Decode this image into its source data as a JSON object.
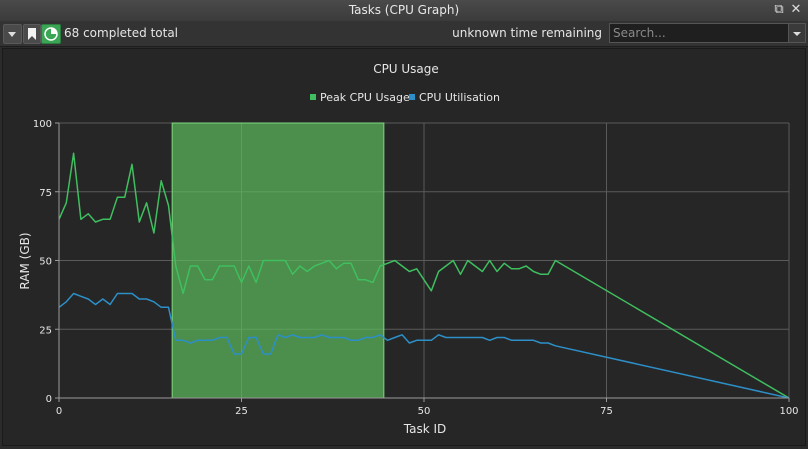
{
  "window": {
    "title": "Tasks (CPU Graph)"
  },
  "toolbar": {
    "completed_text": "68 completed total",
    "remaining_text": "unknown time remaining",
    "search_placeholder": "Search..."
  },
  "colors": {
    "peak": "#3fbf5f",
    "util": "#2d8fc8",
    "selection": "#5fbf5f"
  },
  "chart_data": {
    "type": "line",
    "title": "CPU Usage",
    "xlabel": "Task ID",
    "ylabel": "RAM (GB)",
    "xlim": [
      0,
      100
    ],
    "ylim": [
      0,
      100
    ],
    "x_ticks": [
      "0",
      "25",
      "50",
      "75",
      "100"
    ],
    "y_ticks": [
      "0",
      "25",
      "50",
      "75",
      "100"
    ],
    "grid": true,
    "legend_position": "top-center",
    "highlight_range": [
      15.5,
      44.5
    ],
    "series": [
      {
        "name": "Peak CPU Usage",
        "color": "#3fbf5f",
        "x": [
          0,
          1,
          2,
          3,
          4,
          5,
          6,
          7,
          8,
          9,
          10,
          11,
          12,
          13,
          14,
          15,
          16,
          17,
          18,
          19,
          20,
          21,
          22,
          23,
          24,
          25,
          26,
          27,
          28,
          29,
          30,
          31,
          32,
          33,
          34,
          35,
          36,
          37,
          38,
          39,
          40,
          41,
          42,
          43,
          44,
          45,
          46,
          47,
          48,
          49,
          50,
          51,
          52,
          53,
          54,
          55,
          56,
          57,
          58,
          59,
          60,
          61,
          62,
          63,
          64,
          65,
          66,
          67,
          68,
          100
        ],
        "y": [
          65,
          71,
          89,
          65,
          67,
          64,
          65,
          65,
          73,
          73,
          85,
          64,
          71,
          60,
          79,
          70,
          48,
          38,
          48,
          48,
          43,
          43,
          48,
          48,
          48,
          42,
          48,
          42,
          50,
          50,
          50,
          50,
          45,
          48,
          46,
          48,
          49,
          50,
          47,
          49,
          49,
          43,
          43,
          42,
          48,
          49,
          50,
          48,
          46,
          47,
          43,
          39,
          46,
          48,
          50,
          45,
          50,
          48,
          46,
          50,
          46,
          49,
          47,
          47,
          48,
          46,
          45,
          45,
          50,
          0
        ]
      },
      {
        "name": "CPU Utilisation",
        "color": "#2d8fc8",
        "x": [
          0,
          1,
          2,
          3,
          4,
          5,
          6,
          7,
          8,
          9,
          10,
          11,
          12,
          13,
          14,
          15,
          16,
          17,
          18,
          19,
          20,
          21,
          22,
          23,
          24,
          25,
          26,
          27,
          28,
          29,
          30,
          31,
          32,
          33,
          34,
          35,
          36,
          37,
          38,
          39,
          40,
          41,
          42,
          43,
          44,
          45,
          46,
          47,
          48,
          49,
          50,
          51,
          52,
          53,
          54,
          55,
          56,
          57,
          58,
          59,
          60,
          61,
          62,
          63,
          64,
          65,
          66,
          67,
          68,
          100
        ],
        "y": [
          33,
          35,
          38,
          37,
          36,
          34,
          36,
          34,
          38,
          38,
          38,
          36,
          36,
          35,
          33,
          33,
          21,
          21,
          20,
          21,
          21,
          21,
          22,
          22,
          16,
          16,
          22,
          22,
          16,
          16,
          23,
          22,
          23,
          22,
          22,
          22,
          23,
          22,
          22,
          22,
          21,
          21,
          22,
          22,
          23,
          21,
          22,
          23,
          20,
          21,
          21,
          21,
          23,
          22,
          22,
          22,
          22,
          22,
          22,
          21,
          22,
          22,
          21,
          21,
          21,
          21,
          20,
          20,
          19,
          0
        ]
      }
    ]
  }
}
